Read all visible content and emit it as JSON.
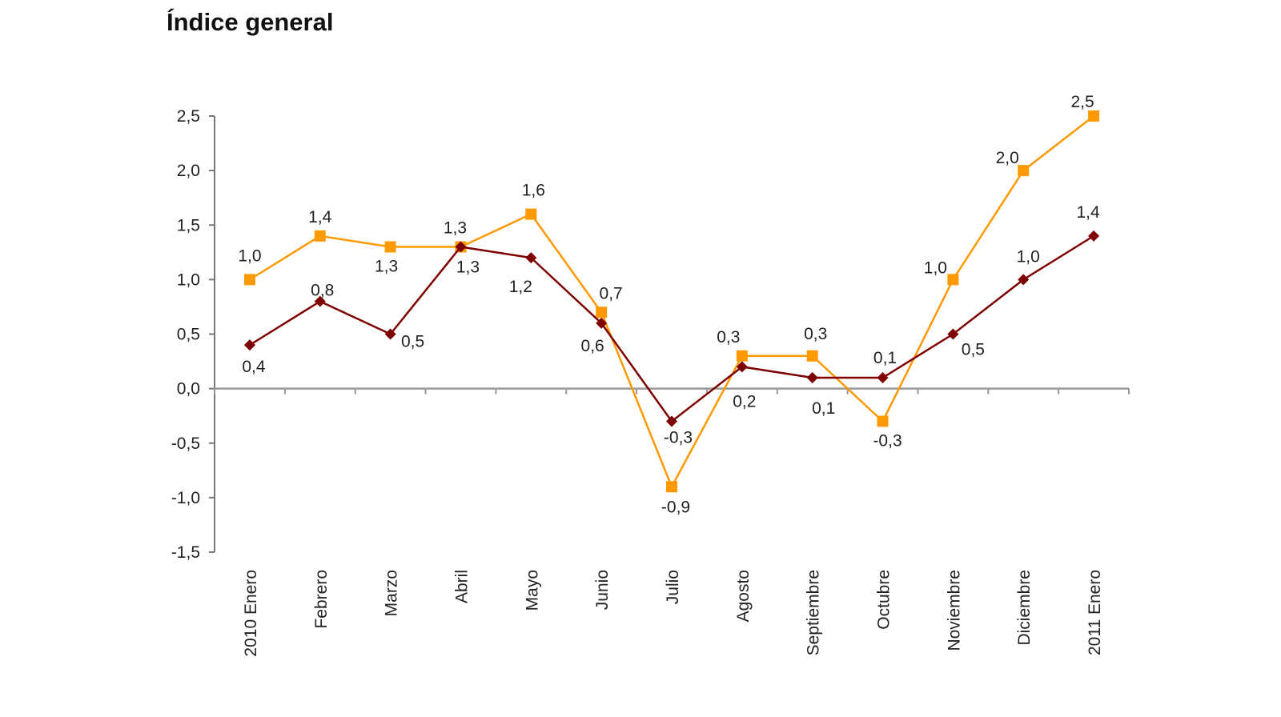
{
  "chart_data": {
    "type": "line",
    "title": "Índice general",
    "categories": [
      "2010 Enero",
      "Febrero",
      "Marzo",
      "Abril",
      "Mayo",
      "Junio",
      "Julio",
      "Agosto",
      "Septiembre",
      "Octubre",
      "Noviembre",
      "Diciembre",
      "2011 Enero"
    ],
    "series": [
      {
        "color": "#FF9900",
        "marker": "square",
        "values": [
          1.0,
          1.4,
          1.3,
          1.3,
          1.6,
          0.7,
          -0.9,
          0.3,
          0.3,
          -0.3,
          1.0,
          2.0,
          2.5
        ]
      },
      {
        "color": "#7F0000",
        "marker": "diamond",
        "values": [
          0.4,
          0.8,
          0.5,
          1.3,
          1.2,
          0.6,
          -0.3,
          0.2,
          0.1,
          0.1,
          0.5,
          1.0,
          1.4
        ]
      }
    ],
    "ylim": [
      -1.5,
      2.5
    ],
    "yticks": [
      "-1,5",
      "-1,0",
      "-0,5",
      "0,0",
      "0,5",
      "1,0",
      "1,5",
      "2,0",
      "2,5"
    ],
    "ytick_values": [
      -1.5,
      -1.0,
      -0.5,
      0.0,
      0.5,
      1.0,
      1.5,
      2.0,
      2.5
    ],
    "decimal_separator": ",",
    "grid": false,
    "legend": "none"
  }
}
